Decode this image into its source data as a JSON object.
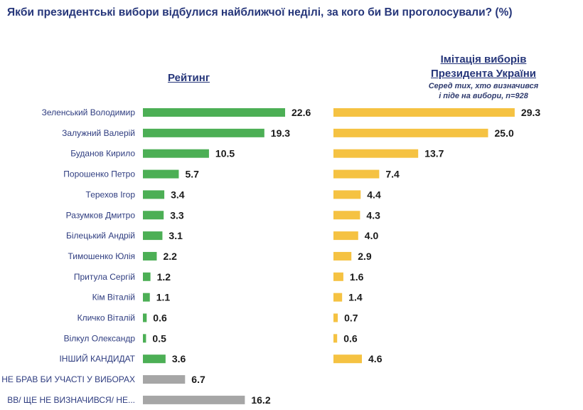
{
  "chart_data": {
    "type": "bar",
    "orientation": "horizontal",
    "title": "Якби президентські вибори відбулися найближчої неділі, за кого би Ви проголосували? (%)",
    "categories": [
      "Зеленський Володимир",
      "Залужний Валерій",
      "Буданов Кирило",
      "Порошенко Петро",
      "Терехов Ігор",
      "Разумков Дмитро",
      "Білецький Андрій",
      "Тимошенко Юлія",
      "Притула Сергій",
      "Кім Віталій",
      "Кличко Віталій",
      "Вілкул Олександр",
      "ІНШИЙ КАНДИДАТ",
      "НЕ БРАВ БИ УЧАСТІ У ВИБОРАХ",
      "ВВ/ ЩЕ НЕ ВИЗНАЧИВСЯ/ НЕ..."
    ],
    "series": [
      {
        "name": "Рейтинг",
        "color": "#4caf55",
        "special_color": "#a6a6a6",
        "values": [
          22.6,
          19.3,
          10.5,
          5.7,
          3.4,
          3.3,
          3.1,
          2.2,
          1.2,
          1.1,
          0.6,
          0.5,
          3.6,
          6.7,
          16.2
        ]
      },
      {
        "name": "Імітація виборів Президента України",
        "subtitle": "Серед тих, хто визначився і піде на вибори, n=928",
        "color": "#f5c242",
        "values": [
          29.3,
          25.0,
          13.7,
          7.4,
          4.4,
          4.3,
          4.0,
          2.9,
          1.6,
          1.4,
          0.7,
          0.6,
          4.6,
          null,
          null
        ]
      }
    ],
    "grid": false,
    "axes_visible": false
  },
  "header": {
    "left": "Рейтинг",
    "right_line1": "Імітація виборів",
    "right_line2": "Президента України",
    "right_sub1": "Серед тих, хто визначився",
    "right_sub2": "і піде на вибори, n=928"
  }
}
